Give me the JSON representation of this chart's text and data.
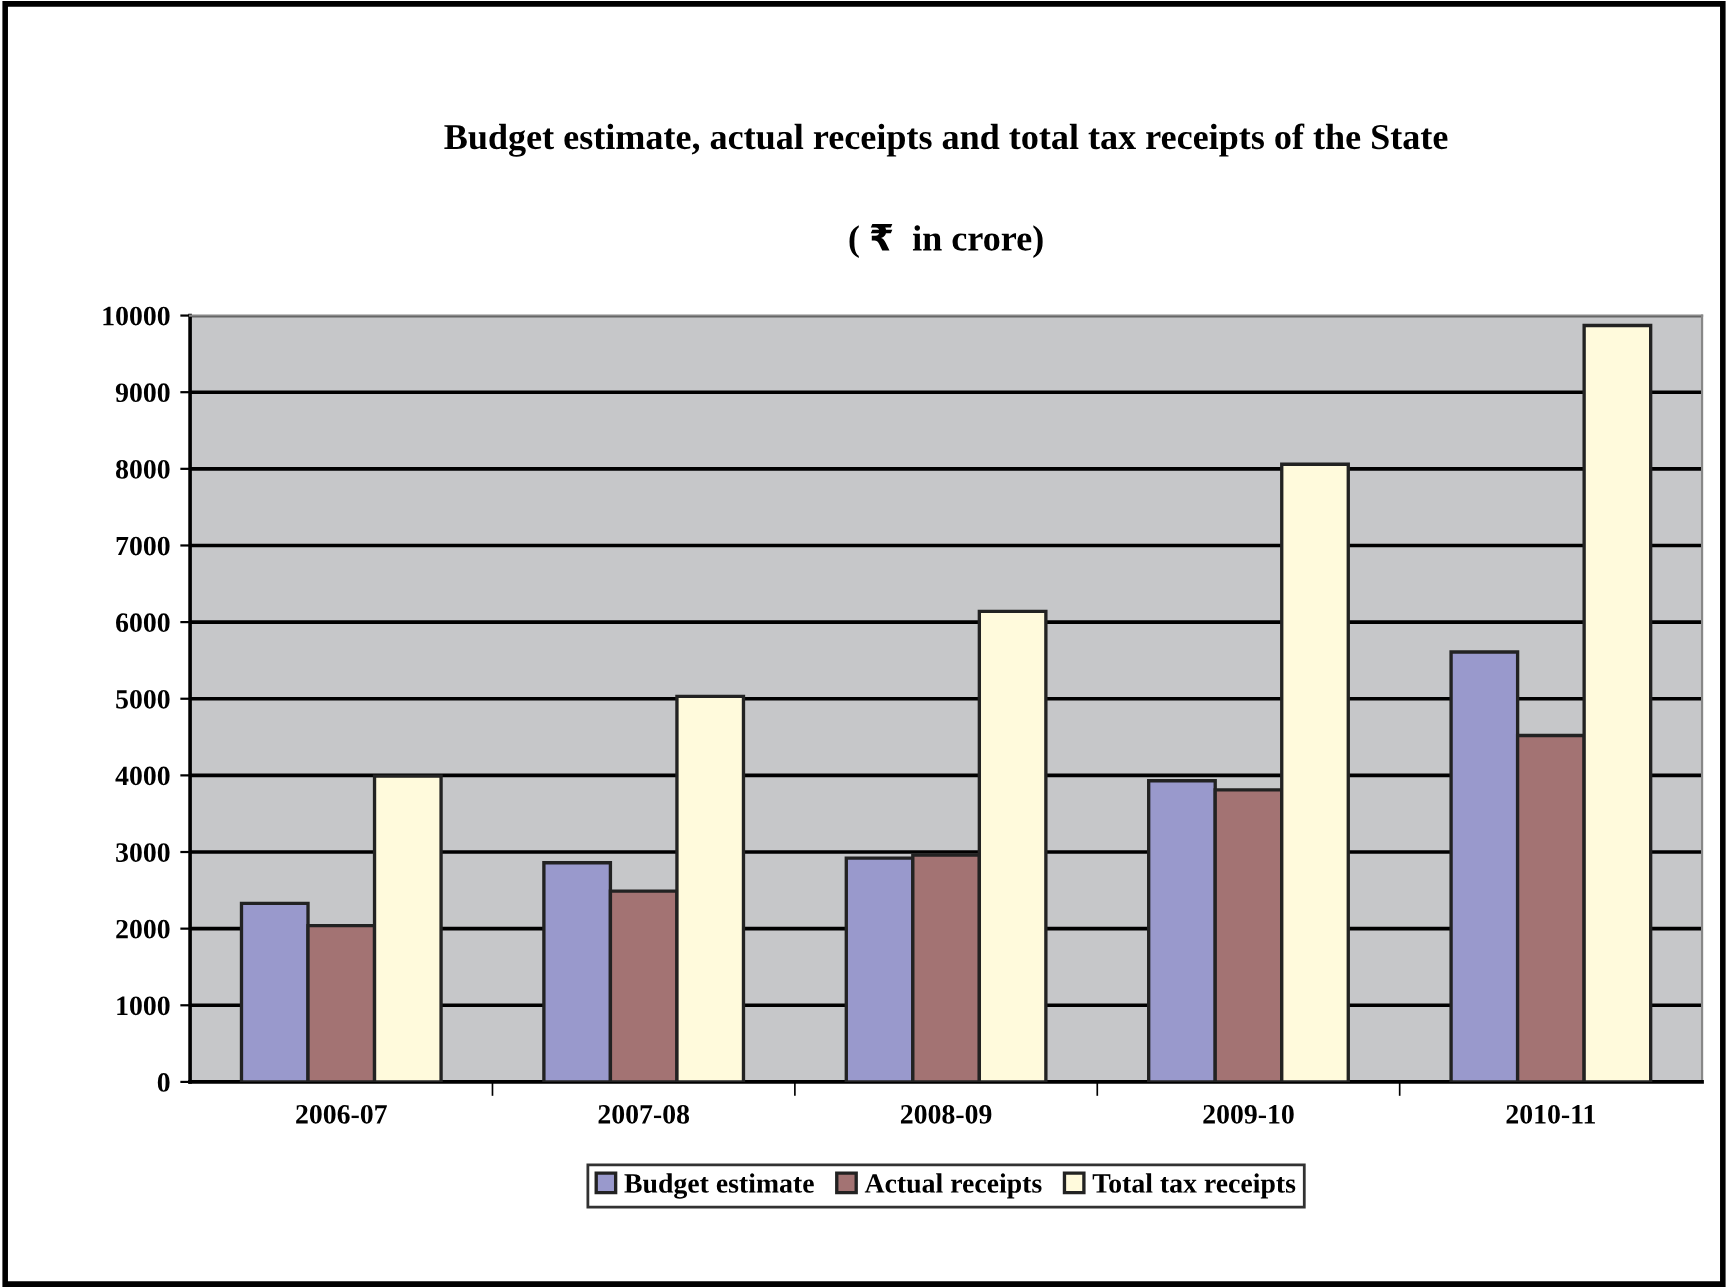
{
  "chart_data": {
    "type": "bar",
    "title": "Budget estimate, actual receipts and total tax receipts of the State",
    "subtitle": "( ₹  in crore)",
    "categories": [
      "2006-07",
      "2007-08",
      "2008-09",
      "2009-10",
      "2010-11"
    ],
    "series": [
      {
        "name": "Budget estimate",
        "color": "#9999cc",
        "values": [
          2330,
          2860,
          2920,
          3930,
          5610
        ]
      },
      {
        "name": "Actual receipts",
        "color": "#a37373",
        "values": [
          2040,
          2490,
          2960,
          3810,
          4520
        ]
      },
      {
        "name": "Total tax receipts",
        "color": "#fffadc",
        "values": [
          3990,
          5030,
          6140,
          8060,
          9870
        ]
      }
    ],
    "ylim": [
      0,
      10000
    ],
    "yticks": [
      0,
      1000,
      2000,
      3000,
      4000,
      5000,
      6000,
      7000,
      8000,
      9000,
      10000
    ],
    "grid": "y",
    "legend": "bottom"
  }
}
